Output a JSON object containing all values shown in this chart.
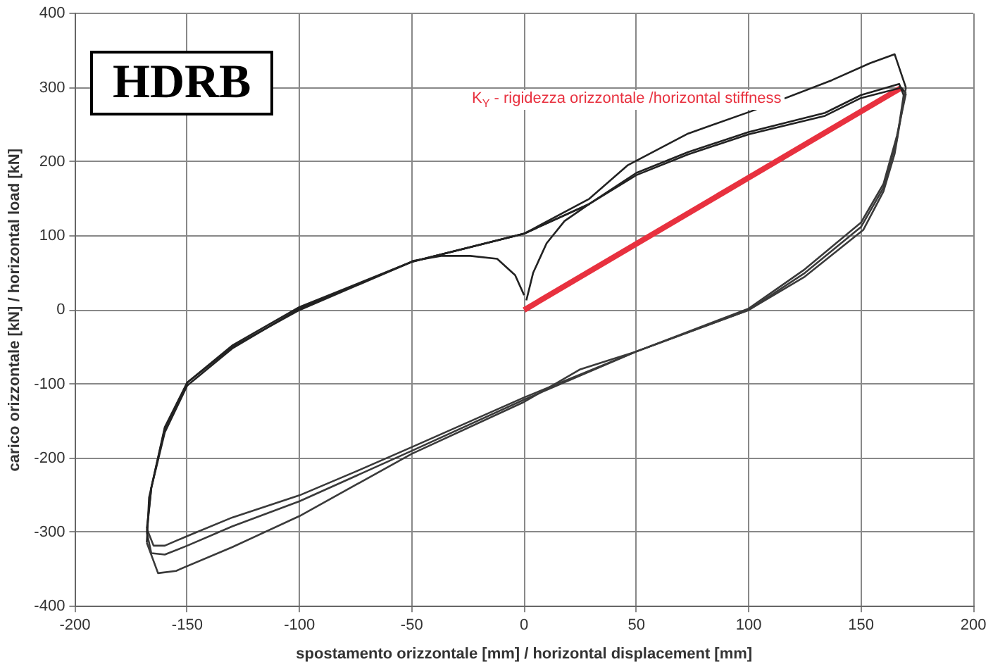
{
  "chart_data": {
    "type": "line",
    "xlabel": "spostamento orizzontale [mm] / horizontal displacement [mm]",
    "ylabel": "carico orizzontale [kN] / horizontal load [kN]",
    "xlim": [
      -200,
      200
    ],
    "xticks": [
      -200,
      -150,
      -100,
      -50,
      0,
      50,
      100,
      150,
      200
    ],
    "ylim": [
      -400,
      400
    ],
    "yticks": [
      -400,
      -300,
      -200,
      -100,
      0,
      100,
      200,
      300,
      400
    ],
    "grid": true,
    "legend": false,
    "marker": "none",
    "line_style": "solid",
    "annotations": [
      "HDRB",
      "K$_{Y}$ - rigidezza orizzontale /horizontal stiffness"
    ],
    "series": [
      {
        "color": "#222222",
        "x": [
          -168,
          -167,
          -160,
          -150,
          -130,
          -100,
          -50,
          0,
          29,
          46,
          73,
          101,
          137,
          154,
          165,
          170
        ],
        "values": [
          -314,
          -253,
          -158,
          -98,
          -50,
          0,
          65,
          103,
          150,
          195,
          238,
          268,
          310,
          333,
          345,
          300
        ]
      },
      {
        "color": "#3a3a3a",
        "x": [
          -168,
          -163,
          -155,
          -130,
          -100,
          -50,
          0,
          25,
          50,
          100,
          125,
          151,
          160,
          165,
          170
        ],
        "values": [
          -314,
          -355,
          -352,
          -320,
          -278,
          -194,
          -124,
          -80,
          -56,
          0,
          45,
          108,
          160,
          211,
          300
        ]
      },
      {
        "color": "#222222",
        "x": [
          -168,
          -166,
          -160,
          -150,
          -130,
          -100,
          -50,
          0,
          29,
          50,
          73,
          100,
          134,
          150,
          167,
          169
        ],
        "values": [
          -295,
          -240,
          -165,
          -102,
          -52,
          2,
          65,
          103,
          143,
          185,
          213,
          240,
          266,
          290,
          305,
          290
        ]
      },
      {
        "color": "#3a3a3a",
        "x": [
          -168,
          -165,
          -160,
          -150,
          -130,
          -100,
          -75,
          -50,
          0,
          50,
          100,
          125,
          150,
          160,
          166,
          169
        ],
        "values": [
          -295,
          -318,
          -318,
          -305,
          -280,
          -250,
          -218,
          -185,
          -118,
          -56,
          0,
          50,
          112,
          165,
          230,
          290
        ]
      },
      {
        "color": "#222222",
        "x": [
          -168,
          -166,
          -160,
          -150,
          -130,
          -100,
          -50,
          0,
          29,
          50,
          73,
          100,
          134,
          150,
          168,
          170
        ],
        "values": [
          -300,
          -240,
          -160,
          -98,
          -48,
          4,
          65,
          103,
          143,
          182,
          210,
          237,
          262,
          286,
          300,
          292
        ]
      },
      {
        "color": "#3a3a3a",
        "x": [
          -168,
          -166,
          -160,
          -150,
          -130,
          -100,
          -50,
          0,
          50,
          100,
          125,
          150,
          160,
          166,
          170
        ],
        "values": [
          -300,
          -328,
          -330,
          -318,
          -292,
          -258,
          -190,
          -121,
          -56,
          2,
          55,
          118,
          170,
          235,
          292
        ]
      },
      {
        "color": "#222222",
        "x": [
          1,
          4,
          10,
          18,
          29
        ],
        "values": [
          13,
          50,
          90,
          120,
          143
        ]
      },
      {
        "color": "#222222",
        "x": [
          -50,
          -37,
          -24,
          -12,
          -4,
          0
        ],
        "values": [
          66,
          73,
          73,
          69,
          47,
          20
        ]
      },
      {
        "color": "#e8313f",
        "x": [
          0,
          168
        ],
        "values": [
          0,
          300
        ]
      }
    ]
  }
}
